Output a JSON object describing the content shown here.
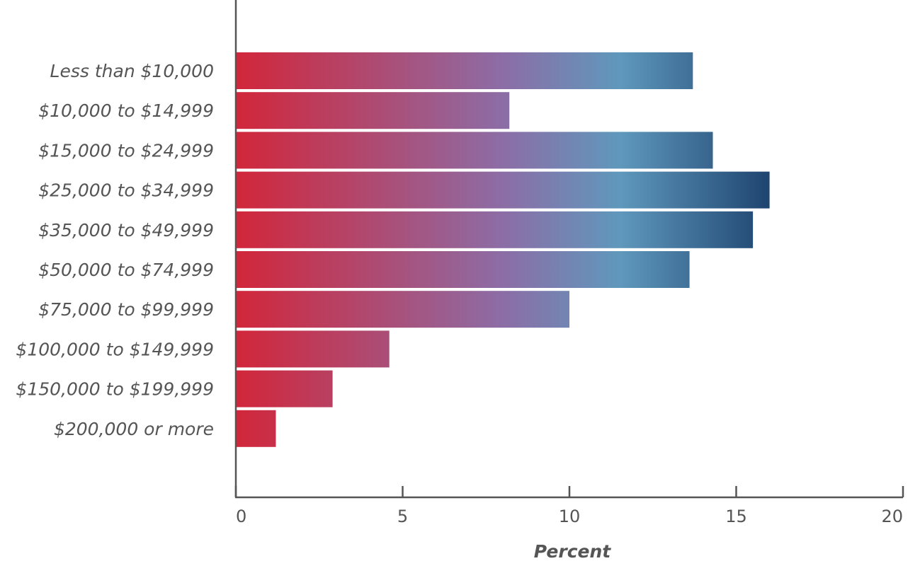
{
  "chart_data": {
    "type": "bar",
    "orientation": "horizontal",
    "categories": [
      "Less than $10,000",
      "$10,000 to $14,999",
      "$15,000 to $24,999",
      "$25,000 to $34,999",
      "$35,000 to $49,999",
      "$50,000 to $74,999",
      "$75,000 to $99,999",
      "$100,000 to $149,999",
      "$150,000 to $199,999",
      "$200,000 or more"
    ],
    "values": [
      13.7,
      8.2,
      14.3,
      16.0,
      15.5,
      13.6,
      10.0,
      4.6,
      2.9,
      1.2
    ],
    "xlabel": "Percent",
    "ylabel": "",
    "xlim": [
      0,
      20
    ],
    "xticks": [
      "0",
      "5",
      "10",
      "15",
      "20"
    ],
    "grid": false,
    "bar_gradient": [
      "#d2263a",
      "#8c6da6",
      "#5f98bc",
      "#1e4470"
    ]
  }
}
